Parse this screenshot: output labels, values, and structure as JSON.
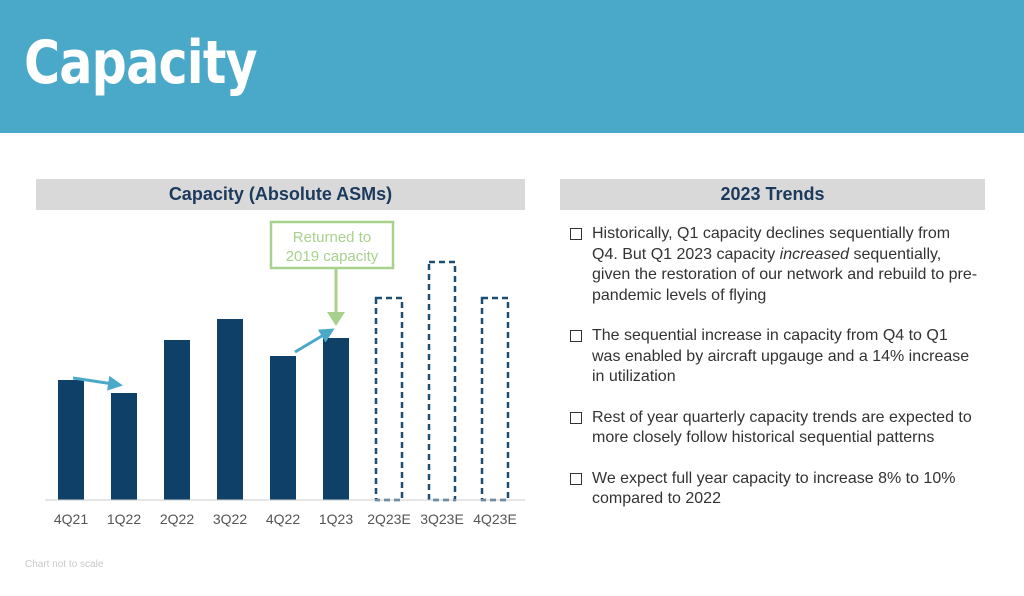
{
  "page": {
    "title": "Capacity",
    "footnote": "Chart not to scale"
  },
  "left_panel": {
    "heading": "Capacity (Absolute ASMs)"
  },
  "right_panel": {
    "heading": "2023 Trends",
    "bullets": [
      {
        "pre": "Historically, Q1 capacity declines sequentially from Q4. But Q1 2023 capacity ",
        "em": "increased",
        "post": " sequentially, given the restoration of our network and rebuild to pre-pandemic levels of flying"
      },
      {
        "pre": "The sequential increase in capacity from Q4 to Q1 was enabled by aircraft upgauge and a 14% increase in utilization",
        "em": "",
        "post": ""
      },
      {
        "pre": "Rest of year quarterly capacity trends are expected to more closely follow historical sequential patterns",
        "em": "",
        "post": ""
      },
      {
        "pre": "We expect full year capacity to increase 8% to 10% compared to 2022",
        "em": "",
        "post": ""
      }
    ]
  },
  "chart_data": {
    "type": "bar",
    "categories": [
      "4Q21",
      "1Q22",
      "2Q22",
      "3Q22",
      "4Q22",
      "1Q23",
      "2Q23E",
      "3Q23E",
      "4Q23E"
    ],
    "values": [
      120,
      107,
      160,
      181,
      144,
      162,
      202,
      238,
      202
    ],
    "estimated": [
      false,
      false,
      false,
      false,
      false,
      false,
      true,
      true,
      true
    ],
    "ylim": [
      0,
      260
    ],
    "annotations": [
      {
        "text_lines": [
          "Returned to",
          "2019 capacity"
        ],
        "target": "1Q23"
      }
    ],
    "trend_arrows": [
      {
        "from": "4Q21",
        "to": "1Q22",
        "direction": "down"
      },
      {
        "from": "4Q22",
        "to": "1Q23",
        "direction": "up"
      }
    ],
    "colors": {
      "bar": "#0e4068",
      "estimate_outline": "#1c4d74",
      "arrow": "#4aa8c8",
      "annotation": "#a9d18e"
    }
  }
}
